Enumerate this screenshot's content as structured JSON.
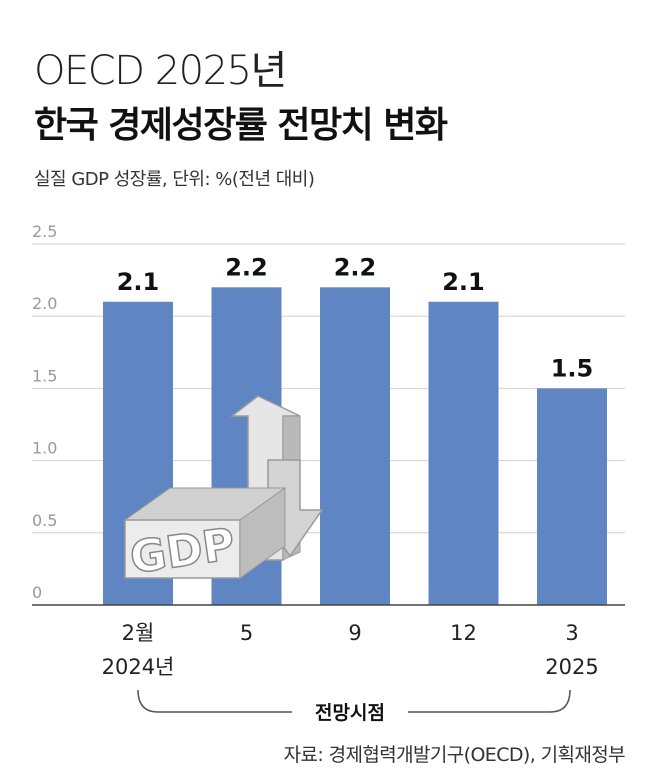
{
  "header": {
    "title_line1": "OECD 2025년",
    "title_line2": "한국 경제성장률 전망치 변화",
    "subtitle": "실질 GDP 성장률, 단위: %(전년 대비)"
  },
  "chart_data": {
    "type": "bar",
    "categories": [
      "2월",
      "5",
      "9",
      "12",
      "3"
    ],
    "year_labels": [
      "2024년",
      "",
      "",
      "",
      "2025"
    ],
    "values": [
      2.1,
      2.2,
      2.2,
      2.1,
      1.5
    ],
    "value_labels": [
      "2.1",
      "2.2",
      "2.2",
      "2.1",
      "1.5"
    ],
    "ylim": [
      0,
      2.5
    ],
    "yticks": [
      0,
      0.5,
      1.0,
      1.5,
      2.0,
      2.5
    ],
    "ytick_labels": [
      "0",
      "0.5",
      "1.0",
      "1.5",
      "2.0",
      "2.5"
    ],
    "grid": true,
    "xlabel": "전망시점",
    "bar_color": "#5f86c3",
    "illustration_text": "GDP"
  },
  "footer": {
    "source": "자료: 경제협력개발기구(OECD), 기획재정부"
  }
}
